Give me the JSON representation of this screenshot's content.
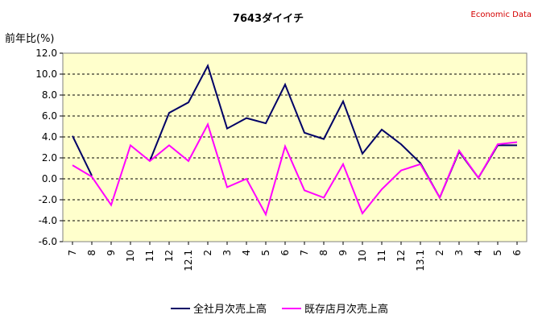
{
  "chart_data": {
    "type": "line",
    "title": "7643ダイイチ",
    "credit": "Economic Data",
    "ylabel": "前年比(%)",
    "xlabel": "",
    "ylim": [
      -6.0,
      12.0
    ],
    "ytick_step": 2.0,
    "ytick_labels": [
      "-6.0",
      "-4.0",
      "-2.0",
      "0.0",
      "2.0",
      "4.0",
      "6.0",
      "8.0",
      "10.0",
      "12.0"
    ],
    "grid": true,
    "legend": "bottom",
    "plot_background": "#ffffcc",
    "categories": [
      "7",
      "8",
      "9",
      "10",
      "11",
      "12",
      "12.1",
      "2",
      "3",
      "4",
      "5",
      "6",
      "7",
      "8",
      "9",
      "10",
      "11",
      "12",
      "13.1",
      "2",
      "3",
      "4",
      "5",
      "6"
    ],
    "series": [
      {
        "name": "全社月次売上高",
        "color": "#000066",
        "values": [
          4.1,
          0.3,
          null,
          null,
          1.7,
          6.3,
          7.3,
          10.8,
          4.8,
          5.8,
          5.3,
          9.0,
          4.4,
          3.8,
          7.4,
          2.4,
          4.7,
          3.3,
          1.5,
          -1.8,
          2.6,
          0.1,
          3.2,
          3.2
        ]
      },
      {
        "name": "既存店月次売上高",
        "color": "#ff00ff",
        "values": [
          1.3,
          0.2,
          -2.5,
          3.2,
          1.7,
          3.2,
          1.7,
          5.2,
          -0.8,
          0.0,
          -3.4,
          3.1,
          -1.1,
          -1.8,
          1.4,
          -3.3,
          -1.0,
          0.8,
          1.4,
          -1.8,
          2.7,
          0.1,
          3.3,
          3.5
        ]
      }
    ]
  }
}
